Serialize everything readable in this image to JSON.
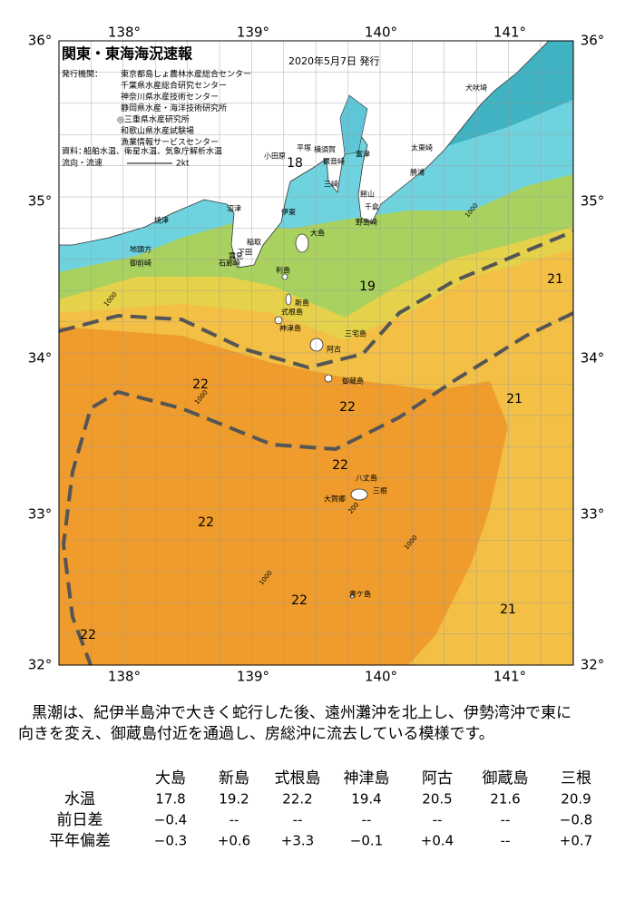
{
  "header": {
    "title": "関東・東海海況速報",
    "date": "2020年5月7日 発行",
    "publisher_label": "発行機関：",
    "publishers": [
      "東京都島しょ農林水産総合センター",
      "千葉県水産総合研究センター",
      "神奈川県水産技術センター",
      "静岡県水産・海洋技術研究所",
      "◎三重県水産研究所",
      "和歌山県水産試験場",
      "漁業情報サービスセンター"
    ],
    "source_label": "資料：",
    "source": "船舶水温、衛星水温、気象庁解析水温",
    "flow_label": "流向・流速",
    "flow_scale": "2kt"
  },
  "map": {
    "lon_labels": [
      "138°",
      "139°",
      "140°",
      "141°"
    ],
    "lat_labels": [
      "36°",
      "35°",
      "34°",
      "33°",
      "32°"
    ],
    "place_names": [
      "小田原",
      "平塚",
      "横須賀",
      "観音崎",
      "富津",
      "三崎",
      "館山",
      "千倉",
      "野島崎",
      "大島",
      "勝浦",
      "太東崎",
      "犬吠埼",
      "沼津",
      "伊東",
      "焼津",
      "稲取",
      "下田",
      "雲見",
      "石廊崎",
      "地頭方",
      "御前崎",
      "利島",
      "新島",
      "式根島",
      "神津島",
      "三宅島",
      "阿古",
      "御蔵島",
      "八丈島",
      "三根",
      "大賀郷",
      "青ケ島"
    ],
    "temperature_labels": [
      "18",
      "19",
      "21",
      "22",
      "22",
      "21",
      "22",
      "22",
      "22",
      "21",
      "22"
    ],
    "contour_labels": [
      "1000",
      "1000",
      "1000",
      "1000",
      "1000",
      "200"
    ]
  },
  "description": [
    "黒潮は、紀伊半島沖で大きく蛇行した後、遠州灘沖を北上し、伊勢湾沖で東に",
    "向きを変え、御蔵島付近を通過し、房総沖に流去している模様です。"
  ],
  "table": {
    "columns": [
      "大島",
      "新島",
      "式根島",
      "神津島",
      "阿古",
      "御蔵島",
      "三根"
    ],
    "rows": [
      {
        "label": "水温",
        "values": [
          "17.8",
          "19.2",
          "22.2",
          "19.4",
          "20.5",
          "21.6",
          "20.9"
        ]
      },
      {
        "label": "前日差",
        "values": [
          "−0.4",
          "--",
          "--",
          "--",
          "--",
          "--",
          "−0.8"
        ]
      },
      {
        "label": "平年偏差",
        "values": [
          "−0.3",
          "+0.6",
          "+3.3",
          "−0.1",
          "+0.4",
          "--",
          "+0.7"
        ]
      }
    ]
  }
}
